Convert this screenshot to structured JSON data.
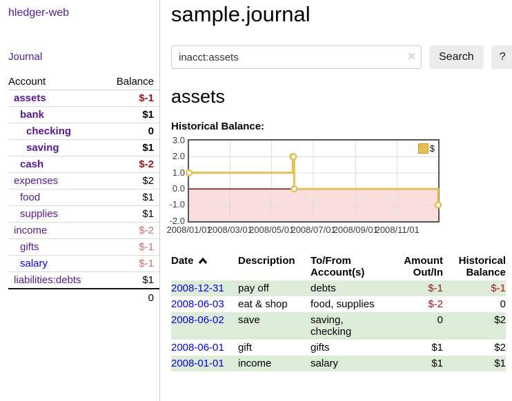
{
  "app": {
    "title": "hledger-web",
    "nav_journal": "Journal"
  },
  "colors": {
    "link_purple": "#551a8b",
    "link_blue": "#0000e0",
    "negative_strong": "#9d1515",
    "negative_soft": "#c76e6e",
    "row_green": "#ddecd9",
    "chart_gold": "#e2c152",
    "chart_pink": "#fbdede",
    "zero_line_red": "#8b0000"
  },
  "sidebar": {
    "accounts": {
      "headers": [
        "Account",
        "Balance"
      ],
      "rows": [
        {
          "account": "assets",
          "indent": 0,
          "emph": true,
          "neg": "strong",
          "balance": "$-1"
        },
        {
          "account": "bank",
          "indent": 1,
          "emph": true,
          "neg": null,
          "balance": "$1"
        },
        {
          "account": "checking",
          "indent": 2,
          "emph": true,
          "neg": null,
          "balance": "0"
        },
        {
          "account": "saving",
          "indent": 2,
          "emph": true,
          "neg": null,
          "balance": "$1"
        },
        {
          "account": "cash",
          "indent": 1,
          "emph": true,
          "neg": "strong",
          "balance": "$-2"
        },
        {
          "account": "expenses",
          "indent": 0,
          "emph": false,
          "neg": null,
          "balance": "$2"
        },
        {
          "account": "food",
          "indent": 1,
          "emph": false,
          "neg": null,
          "balance": "$1"
        },
        {
          "account": "supplies",
          "indent": 1,
          "emph": false,
          "neg": null,
          "balance": "$1"
        },
        {
          "account": "income",
          "indent": 0,
          "emph": false,
          "neg": "soft",
          "balance": "$-2"
        },
        {
          "account": "gifts",
          "indent": 1,
          "emph": false,
          "neg": "soft",
          "balance": "$-1"
        },
        {
          "account": "salary",
          "indent": 1,
          "emph": false,
          "neg": "soft",
          "balance": "$-1",
          "link_style": "unvisited"
        },
        {
          "account": "liabilities:debts",
          "indent": 0,
          "emph": false,
          "neg": null,
          "balance": "$1"
        }
      ],
      "total": "0"
    }
  },
  "header": {
    "title": "sample.journal"
  },
  "search": {
    "value": "inacct:assets",
    "clear_label": "×",
    "button_label": "Search",
    "help_label": "?"
  },
  "main": {
    "account_heading": "assets"
  },
  "chart_data": {
    "type": "line",
    "step": true,
    "title": "Historical Balance:",
    "series": [
      {
        "name": "$",
        "color": "#e2c152",
        "points": [
          [
            "2008-01-01",
            1
          ],
          [
            "2008-06-01",
            2
          ],
          [
            "2008-06-02",
            2
          ],
          [
            "2008-06-03",
            0
          ],
          [
            "2008-12-31",
            -1
          ]
        ]
      }
    ],
    "xrange": [
      "2008-01-01",
      "2008-12-31"
    ],
    "xticks": [
      "2008/01/01",
      "2008/03/01",
      "2008/05/01",
      "2008/07/01",
      "2008/09/01",
      "2008/11/01"
    ],
    "yticks": [
      3.0,
      2.0,
      1.0,
      0.0,
      -1.0,
      -2.0
    ],
    "ylim": [
      -2,
      3
    ],
    "grid": true,
    "legend_position": "top-right",
    "negative_region_fill": "#fbdede",
    "zero_line_color": "#8b0000"
  },
  "register": {
    "headers": [
      "Date",
      "Description",
      "To/From Account(s)",
      "Amount Out/In",
      "Historical Balance"
    ],
    "rows": [
      {
        "date": "2008-12-31",
        "description": "pay off",
        "accounts": "debts",
        "amount": "$-1",
        "amount_neg": true,
        "balance": "$-1",
        "balance_neg": true
      },
      {
        "date": "2008-06-03",
        "description": "eat & shop",
        "accounts": "food, supplies",
        "amount": "$-2",
        "amount_neg": true,
        "balance": "0",
        "balance_neg": false
      },
      {
        "date": "2008-06-02",
        "description": "save",
        "accounts": "saving, checking",
        "amount": "0",
        "amount_neg": false,
        "balance": "$2",
        "balance_neg": false
      },
      {
        "date": "2008-06-01",
        "description": "gift",
        "accounts": "gifts",
        "amount": "$1",
        "amount_neg": false,
        "balance": "$2",
        "balance_neg": false
      },
      {
        "date": "2008-01-01",
        "description": "income",
        "accounts": "salary",
        "amount": "$1",
        "amount_neg": false,
        "balance": "$1",
        "balance_neg": false
      }
    ]
  }
}
